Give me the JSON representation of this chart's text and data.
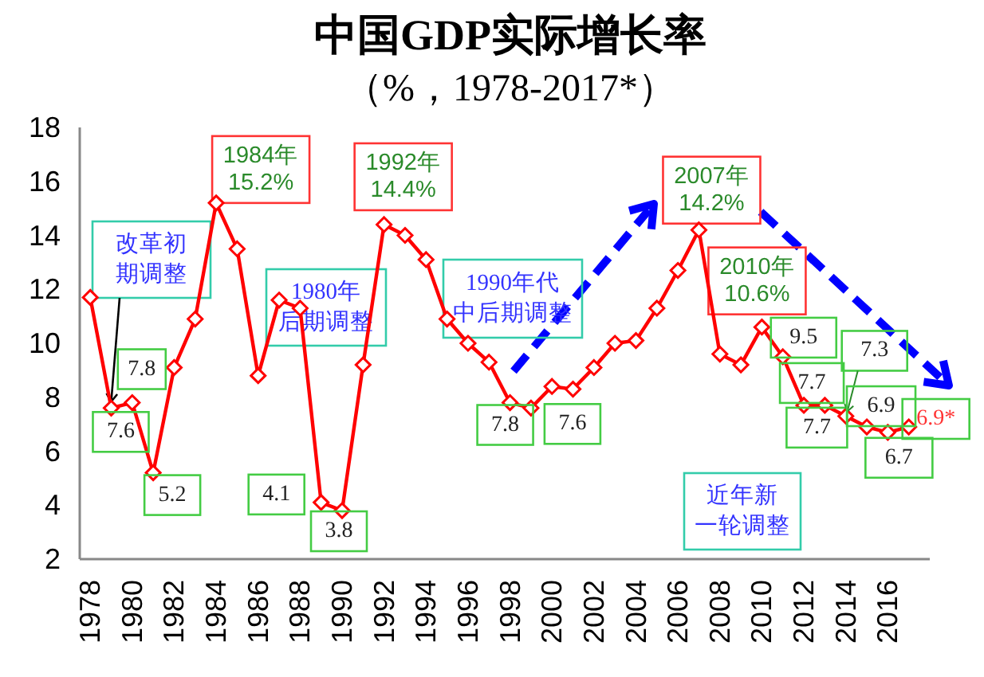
{
  "chart_data": {
    "type": "line",
    "title": "中国GDP实际增长率",
    "subtitle": "（%，1978-2017*）",
    "x": [
      1978,
      1979,
      1980,
      1981,
      1982,
      1983,
      1984,
      1985,
      1986,
      1987,
      1988,
      1989,
      1990,
      1991,
      1992,
      1993,
      1994,
      1995,
      1996,
      1997,
      1998,
      1999,
      2000,
      2001,
      2002,
      2003,
      2004,
      2005,
      2006,
      2007,
      2008,
      2009,
      2010,
      2011,
      2012,
      2013,
      2014,
      2015,
      2016,
      2017
    ],
    "values": [
      11.7,
      7.6,
      7.8,
      5.2,
      9.1,
      10.9,
      15.2,
      13.5,
      8.8,
      11.6,
      11.3,
      4.1,
      3.8,
      9.2,
      14.4,
      14.0,
      13.1,
      10.9,
      10.0,
      9.3,
      7.8,
      7.6,
      8.4,
      8.3,
      9.1,
      10.0,
      10.1,
      11.3,
      12.7,
      14.2,
      9.6,
      9.2,
      10.6,
      9.5,
      7.7,
      7.7,
      7.3,
      6.9,
      6.7,
      6.9
    ],
    "value_labels": [
      null,
      "7.6",
      "7.8",
      "5.2",
      null,
      null,
      null,
      null,
      null,
      null,
      null,
      "4.1",
      "3.8",
      null,
      null,
      null,
      null,
      null,
      null,
      null,
      "7.8",
      "7.6",
      null,
      null,
      null,
      null,
      null,
      null,
      null,
      null,
      null,
      null,
      null,
      "9.5",
      "7.7",
      "7.7",
      "7.3",
      "6.9",
      "6.7",
      "6.9*"
    ],
    "color": "#ff0000",
    "marker": "diamond",
    "line_style": "solid",
    "xlim": [
      1977.5,
      2018
    ],
    "xticks": [
      1978,
      1980,
      1982,
      1984,
      1986,
      1988,
      1990,
      1992,
      1994,
      1996,
      1998,
      2000,
      2002,
      2004,
      2006,
      2008,
      2010,
      2012,
      2014,
      2016
    ],
    "ylim": [
      2,
      18
    ],
    "yticks": [
      2,
      4,
      6,
      8,
      10,
      12,
      14,
      16,
      18
    ],
    "annotations": [
      {
        "text": "1984年\n15.2%",
        "x": 1984,
        "y": 15.2
      },
      {
        "text": "1992年\n14.4%",
        "x": 1992,
        "y": 14.4
      },
      {
        "text": "2007年\n14.2%",
        "x": 2007,
        "y": 14.2
      },
      {
        "text": "2010年\n10.6%",
        "x": 2010,
        "y": 10.6
      },
      {
        "text": "改革初期调整",
        "x": 1979,
        "y": 7.6
      },
      "1980年后期调整",
      "1990年代中后期调整",
      "近年新一轮调整"
    ]
  }
}
